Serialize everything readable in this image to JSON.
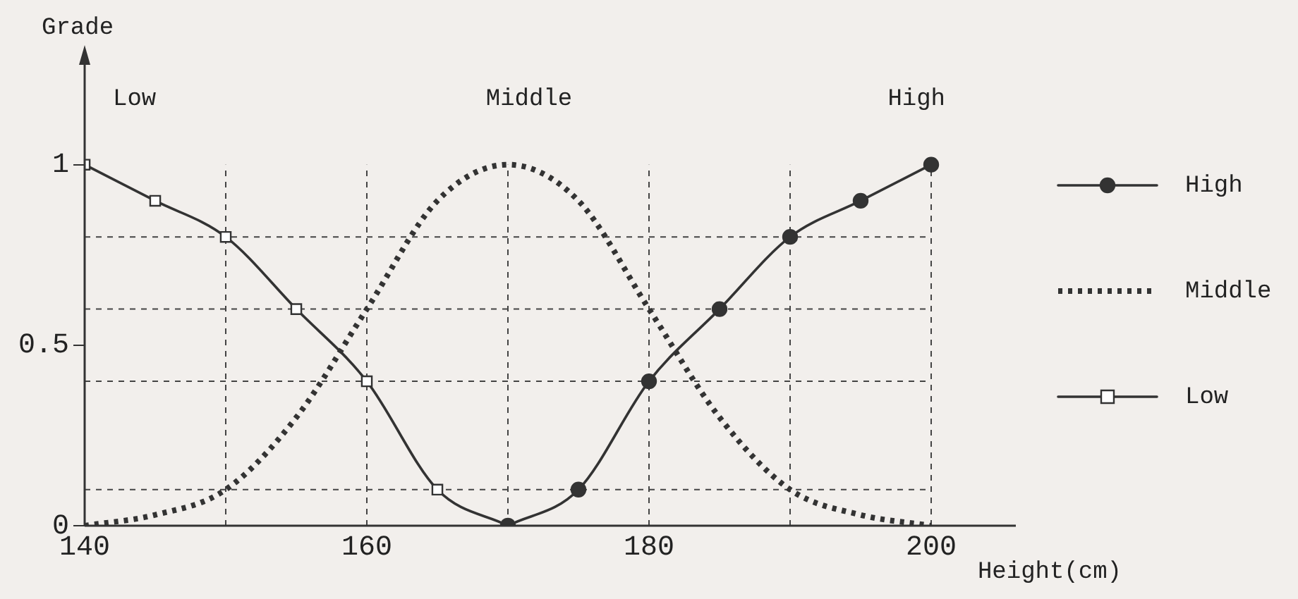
{
  "chart_data": {
    "type": "line",
    "xlabel": "Height(cm)",
    "ylabel": "Grade",
    "x": [
      140,
      145,
      150,
      155,
      160,
      165,
      170,
      175,
      180,
      185,
      190,
      195,
      200
    ],
    "series": [
      {
        "name": "High",
        "color": "#333333",
        "marker": "circle",
        "line_style": "solid",
        "values": [
          null,
          null,
          null,
          null,
          null,
          null,
          0,
          0.1,
          0.4,
          0.6,
          0.8,
          0.9,
          1
        ]
      },
      {
        "name": "Middle",
        "color": "#333333",
        "marker": "none",
        "line_style": "dotted",
        "values": [
          0,
          0.03,
          0.1,
          0.3,
          0.6,
          0.9,
          1,
          0.9,
          0.6,
          0.3,
          0.1,
          0.03,
          0
        ]
      },
      {
        "name": "Low",
        "color": "#333333",
        "marker": "square",
        "line_style": "solid",
        "values": [
          1,
          0.9,
          0.8,
          0.6,
          0.4,
          0.1,
          0,
          null,
          null,
          null,
          null,
          null,
          null
        ]
      }
    ],
    "xlim": [
      140,
      206
    ],
    "xticks": [
      140,
      160,
      180,
      200
    ],
    "ylim": [
      0,
      1.3
    ],
    "yticks": [
      0,
      0.5,
      1
    ],
    "ref_lines": [
      {
        "axis": "y",
        "value": 0.1,
        "line_style": "dashed"
      },
      {
        "axis": "y",
        "value": 0.4,
        "line_style": "dashed"
      },
      {
        "axis": "y",
        "value": 0.6,
        "line_style": "dashed"
      },
      {
        "axis": "y",
        "value": 0.8,
        "line_style": "dashed"
      },
      {
        "axis": "x",
        "value": 150,
        "line_style": "dashed"
      },
      {
        "axis": "x",
        "value": 160,
        "line_style": "dashed"
      },
      {
        "axis": "x",
        "value": 170,
        "line_style": "dashed"
      },
      {
        "axis": "x",
        "value": 180,
        "line_style": "dashed"
      },
      {
        "axis": "x",
        "value": 190,
        "line_style": "dashed"
      },
      {
        "axis": "x",
        "value": 200,
        "line_style": "dashed"
      }
    ],
    "annotations": [
      "Low",
      "Middle",
      "High"
    ],
    "grid": false,
    "legend": "right"
  }
}
